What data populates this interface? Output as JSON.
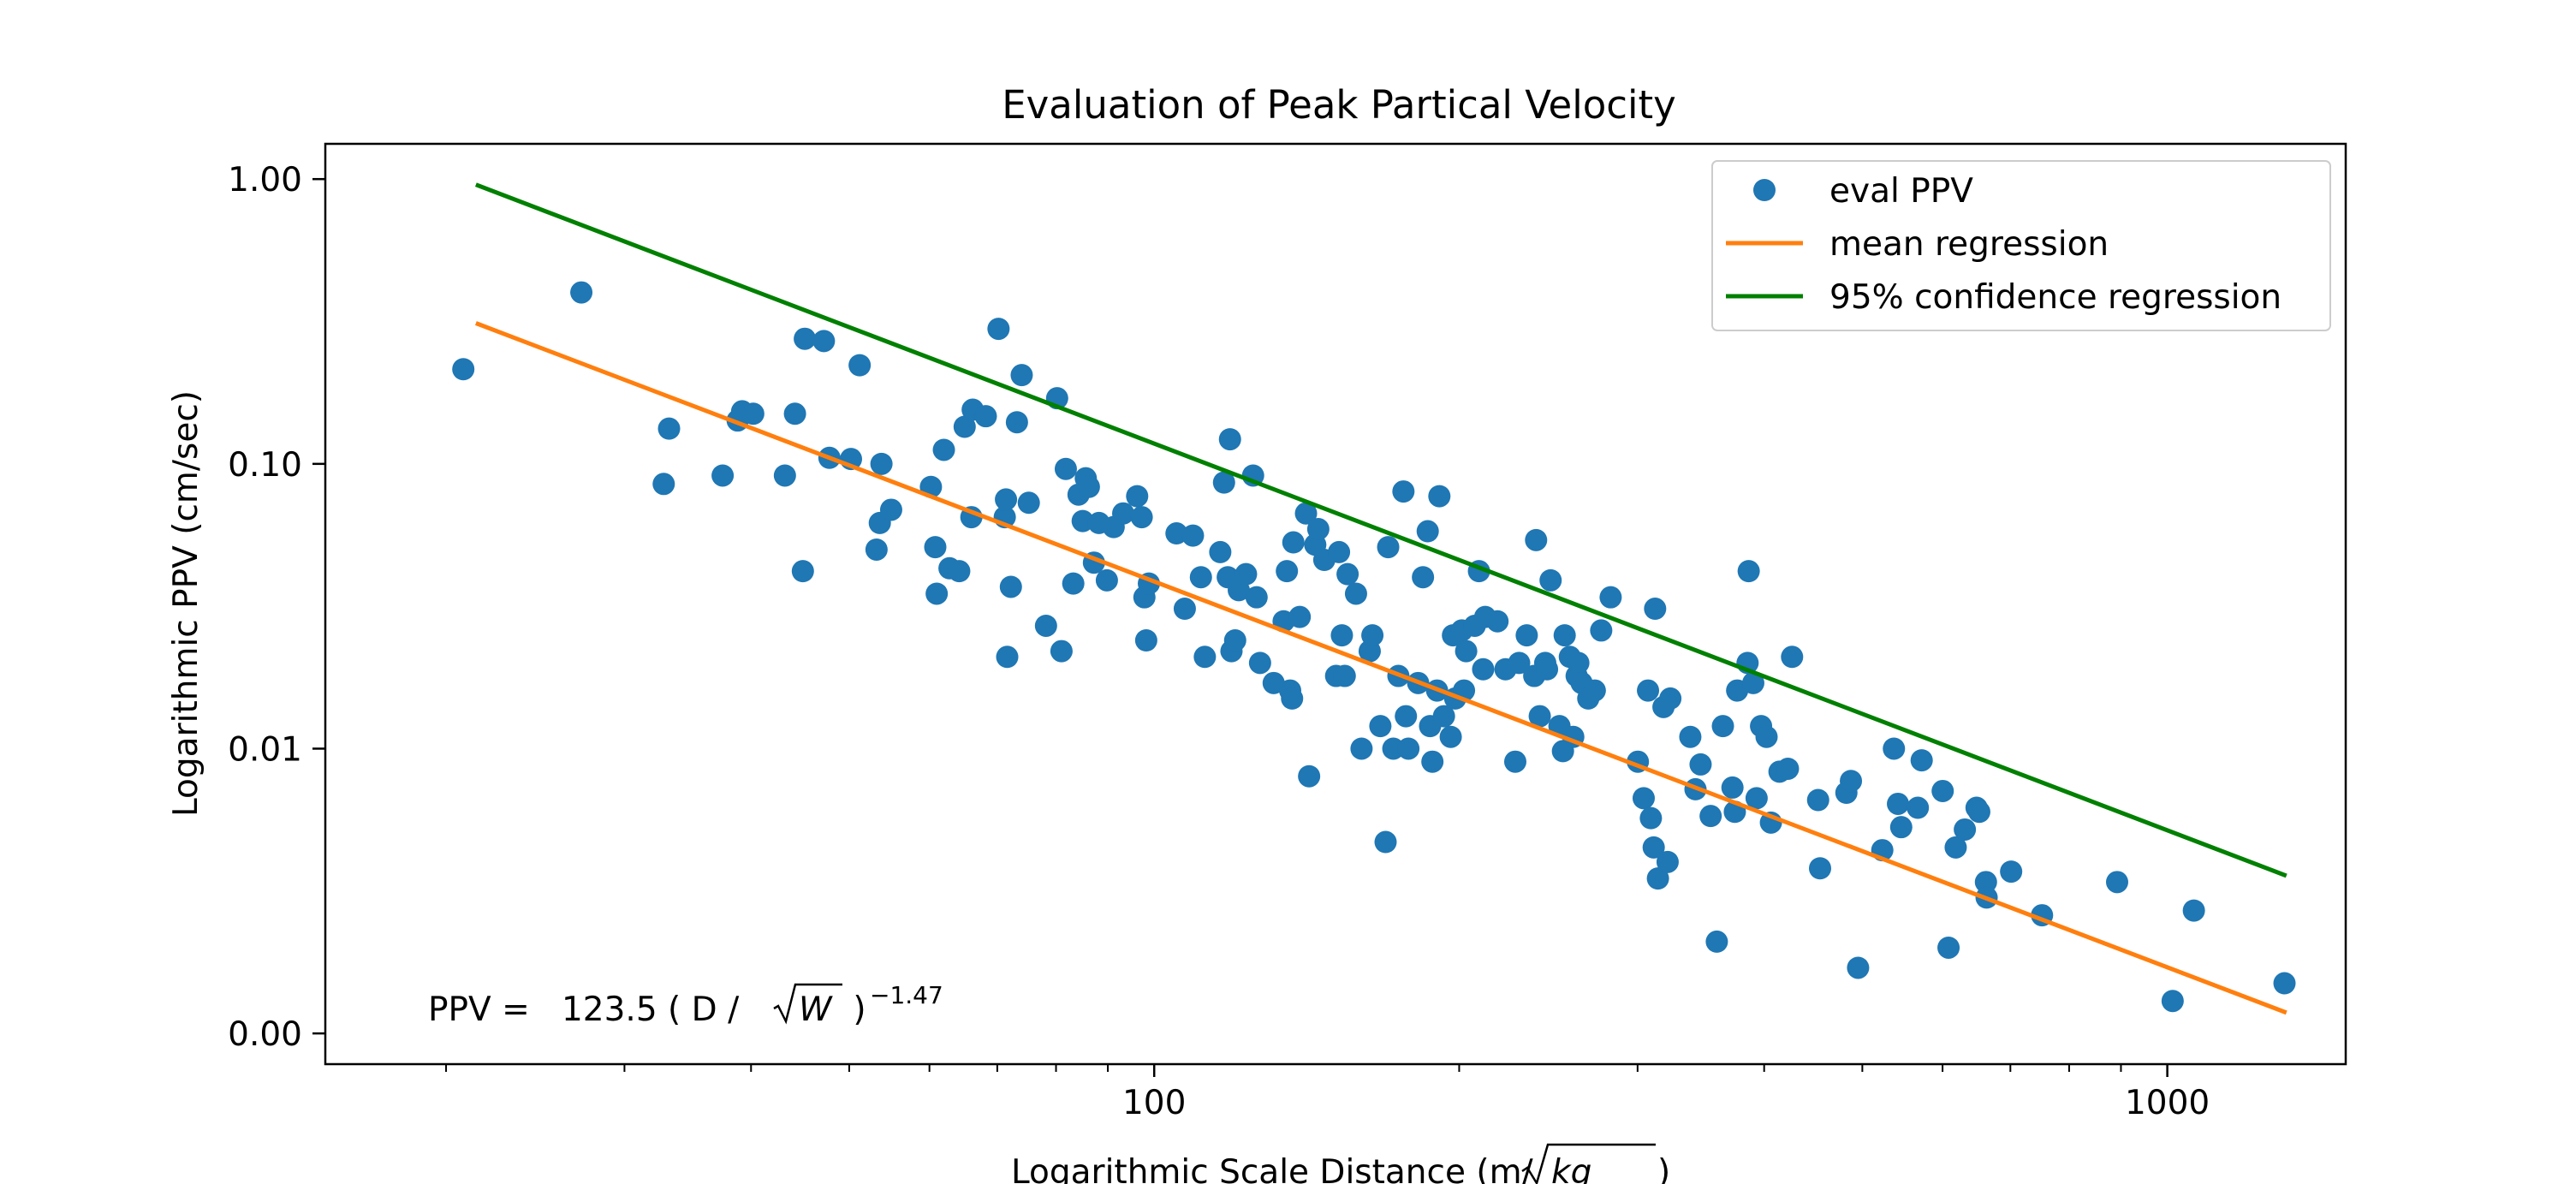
{
  "chart_data": {
    "type": "scatter",
    "title": "Evaluation of Peak Partical Velocity",
    "xlabel_prefix": "Logarithmic Scale Distance (m/",
    "xlabel_sqrt": "kg",
    "xlabel_suffix": ")",
    "ylabel": "Logarithmic PPV (cm/sec)",
    "x_scale": "log",
    "y_scale": "log",
    "xlim": [
      15.2,
      1500
    ],
    "ylim": [
      0.00078,
      1.33
    ],
    "grid": false,
    "legend_position": "top-right",
    "x_ticks": [
      {
        "value": 100,
        "label": "100"
      },
      {
        "value": 1000,
        "label": "1000"
      }
    ],
    "y_ticks": [
      {
        "value": 1.0,
        "label": "1.00"
      },
      {
        "value": 0.1,
        "label": "0.10"
      },
      {
        "value": 0.01,
        "label": "0.01"
      },
      {
        "value": 0.001,
        "label": "0.00"
      }
    ],
    "annotation": {
      "prefix": "PPV =   123.5 ( D / ",
      "sqrt_var": "W",
      "close": " )",
      "exponent": "−1.47"
    },
    "series": [
      {
        "name": "eval PPV",
        "kind": "scatter",
        "color": "#1f77b4",
        "points": [
          [
            20.8,
            0.215
          ],
          [
            27.2,
            0.4
          ],
          [
            32.8,
            0.085
          ],
          [
            33.2,
            0.133
          ],
          [
            37.5,
            0.091
          ],
          [
            38.8,
            0.142
          ],
          [
            39.2,
            0.153
          ],
          [
            40.2,
            0.15
          ],
          [
            43.2,
            0.091
          ],
          [
            44.2,
            0.15
          ],
          [
            45.0,
            0.042
          ],
          [
            45.2,
            0.275
          ],
          [
            47.2,
            0.27
          ],
          [
            47.8,
            0.105
          ],
          [
            50.2,
            0.104
          ],
          [
            51.2,
            0.222
          ],
          [
            53.2,
            0.05
          ],
          [
            53.6,
            0.062
          ],
          [
            53.8,
            0.1
          ],
          [
            55.0,
            0.069
          ],
          [
            60.2,
            0.083
          ],
          [
            60.8,
            0.051
          ],
          [
            61.0,
            0.035
          ],
          [
            62.0,
            0.112
          ],
          [
            62.8,
            0.043
          ],
          [
            64.2,
            0.042
          ],
          [
            65.0,
            0.135
          ],
          [
            66.0,
            0.065
          ],
          [
            66.2,
            0.155
          ],
          [
            68.2,
            0.147
          ],
          [
            70.2,
            0.298
          ],
          [
            71.2,
            0.065
          ],
          [
            71.4,
            0.075
          ],
          [
            71.6,
            0.021
          ],
          [
            72.2,
            0.037
          ],
          [
            73.2,
            0.14
          ],
          [
            74.0,
            0.205
          ],
          [
            75.2,
            0.073
          ],
          [
            78.2,
            0.027
          ],
          [
            80.2,
            0.17
          ],
          [
            81.0,
            0.022
          ],
          [
            81.8,
            0.096
          ],
          [
            83.2,
            0.038
          ],
          [
            84.2,
            0.078
          ],
          [
            85.0,
            0.063
          ],
          [
            85.6,
            0.089
          ],
          [
            86.2,
            0.083
          ],
          [
            87.2,
            0.045
          ],
          [
            88.2,
            0.062
          ],
          [
            89.8,
            0.039
          ],
          [
            91.2,
            0.06
          ],
          [
            93.2,
            0.067
          ],
          [
            96.2,
            0.077
          ],
          [
            97.2,
            0.065
          ],
          [
            97.8,
            0.034
          ],
          [
            98.2,
            0.024
          ],
          [
            98.8,
            0.038
          ],
          [
            105.2,
            0.057
          ],
          [
            107.2,
            0.031
          ],
          [
            109.2,
            0.056
          ],
          [
            111.2,
            0.04
          ],
          [
            112.2,
            0.021
          ],
          [
            116.2,
            0.049
          ],
          [
            117.2,
            0.086
          ],
          [
            118.2,
            0.04
          ],
          [
            118.8,
            0.122
          ],
          [
            119.2,
            0.022
          ],
          [
            120.2,
            0.024
          ],
          [
            121.2,
            0.036
          ],
          [
            123.2,
            0.041
          ],
          [
            125.2,
            0.091
          ],
          [
            126.2,
            0.034
          ],
          [
            127.2,
            0.02
          ],
          [
            131.2,
            0.017
          ],
          [
            134.2,
            0.028
          ],
          [
            135.2,
            0.042
          ],
          [
            136.2,
            0.016
          ],
          [
            136.8,
            0.015
          ],
          [
            137.2,
            0.053
          ],
          [
            139.2,
            0.029
          ],
          [
            141.2,
            0.067
          ],
          [
            142.2,
            0.008
          ],
          [
            144.2,
            0.052
          ],
          [
            145.2,
            0.059
          ],
          [
            147.2,
            0.046
          ],
          [
            151.2,
            0.018
          ],
          [
            152.2,
            0.049
          ],
          [
            153.2,
            0.025
          ],
          [
            154.2,
            0.018
          ],
          [
            155.2,
            0.041
          ],
          [
            158.2,
            0.035
          ],
          [
            160.2,
            0.01
          ],
          [
            163.2,
            0.022
          ],
          [
            164.2,
            0.025
          ],
          [
            167.2,
            0.012
          ],
          [
            169.2,
            0.0047
          ],
          [
            170.2,
            0.051
          ],
          [
            172.2,
            0.01
          ],
          [
            174.2,
            0.018
          ],
          [
            176.2,
            0.08
          ],
          [
            177.2,
            0.013
          ],
          [
            178.2,
            0.01
          ],
          [
            182.2,
            0.017
          ],
          [
            184.2,
            0.04
          ],
          [
            186.2,
            0.058
          ],
          [
            187.2,
            0.012
          ],
          [
            188.2,
            0.009
          ],
          [
            190.2,
            0.016
          ],
          [
            191.2,
            0.077
          ],
          [
            193.2,
            0.013
          ],
          [
            196.2,
            0.011
          ],
          [
            197.2,
            0.025
          ],
          [
            198.2,
            0.015
          ],
          [
            201.2,
            0.026
          ],
          [
            202.2,
            0.016
          ],
          [
            203.2,
            0.022
          ],
          [
            207.2,
            0.027
          ],
          [
            209.2,
            0.042
          ],
          [
            211.2,
            0.019
          ],
          [
            212.2,
            0.029
          ],
          [
            218.2,
            0.028
          ],
          [
            222.2,
            0.019
          ],
          [
            227.2,
            0.009
          ],
          [
            229.2,
            0.02
          ],
          [
            233.2,
            0.025
          ],
          [
            237.2,
            0.018
          ],
          [
            238.2,
            0.054
          ],
          [
            240.2,
            0.013
          ],
          [
            243.2,
            0.02
          ],
          [
            244.2,
            0.019
          ],
          [
            246.2,
            0.039
          ],
          [
            251.2,
            0.012
          ],
          [
            253.2,
            0.0098
          ],
          [
            254.2,
            0.025
          ],
          [
            257.2,
            0.021
          ],
          [
            259.2,
            0.011
          ],
          [
            261.2,
            0.018
          ],
          [
            262.2,
            0.02
          ],
          [
            264.2,
            0.017
          ],
          [
            268.2,
            0.015
          ],
          [
            272.2,
            0.016
          ],
          [
            276.2,
            0.026
          ],
          [
            282.2,
            0.034
          ],
          [
            300.2,
            0.009
          ],
          [
            304.2,
            0.0067
          ],
          [
            307.2,
            0.016
          ],
          [
            309.2,
            0.0057
          ],
          [
            311.2,
            0.0045
          ],
          [
            312.2,
            0.031
          ],
          [
            314.2,
            0.0035
          ],
          [
            318.2,
            0.014
          ],
          [
            321.2,
            0.004
          ],
          [
            323.2,
            0.015
          ],
          [
            338.2,
            0.011
          ],
          [
            342.2,
            0.0072
          ],
          [
            346.2,
            0.0088
          ],
          [
            354.2,
            0.0058
          ],
          [
            359.2,
            0.0021
          ],
          [
            364.2,
            0.012
          ],
          [
            372.2,
            0.0073
          ],
          [
            374.2,
            0.006
          ],
          [
            376.2,
            0.016
          ],
          [
            385.2,
            0.02
          ],
          [
            386.2,
            0.042
          ],
          [
            390.2,
            0.017
          ],
          [
            393.2,
            0.0067
          ],
          [
            397.2,
            0.012
          ],
          [
            402.2,
            0.011
          ],
          [
            406.2,
            0.0055
          ],
          [
            414.2,
            0.0083
          ],
          [
            422.2,
            0.0085
          ],
          [
            426.2,
            0.021
          ],
          [
            452.2,
            0.0066
          ],
          [
            454.2,
            0.0038
          ],
          [
            482.2,
            0.007
          ],
          [
            487.2,
            0.0077
          ],
          [
            495.2,
            0.0017
          ],
          [
            523.2,
            0.0044
          ],
          [
            537.2,
            0.01
          ],
          [
            542.2,
            0.0064
          ],
          [
            546.2,
            0.0053
          ],
          [
            567.2,
            0.0062
          ],
          [
            572.2,
            0.0091
          ],
          [
            600.2,
            0.0071
          ],
          [
            608.2,
            0.002
          ],
          [
            618.2,
            0.0045
          ],
          [
            631.2,
            0.0052
          ],
          [
            648.2,
            0.0062
          ],
          [
            652.2,
            0.006
          ],
          [
            662.2,
            0.0034
          ],
          [
            663.2,
            0.003
          ],
          [
            701.2,
            0.0037
          ],
          [
            752.2,
            0.0026
          ],
          [
            892.2,
            0.0034
          ],
          [
            1012.2,
            0.0013
          ],
          [
            1062.2,
            0.0027
          ],
          [
            1305.2,
            0.0015
          ]
        ]
      },
      {
        "name": "mean regression",
        "kind": "line",
        "color": "#ff7f0e",
        "points": [
          [
            21.5,
            0.31
          ],
          [
            1305,
            0.00119
          ]
        ]
      },
      {
        "name": "95% confidence regression",
        "kind": "line",
        "color": "#008000",
        "points": [
          [
            21.5,
            0.95
          ],
          [
            1305,
            0.0036
          ]
        ]
      }
    ]
  }
}
